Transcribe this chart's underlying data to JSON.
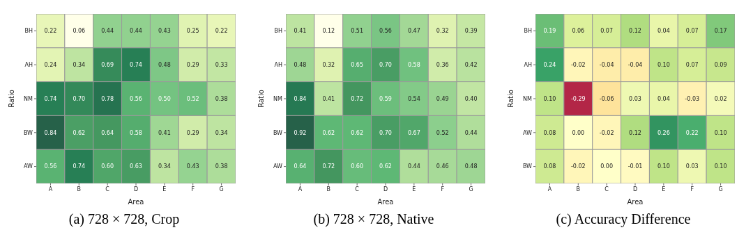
{
  "chart_data": [
    {
      "type": "heatmap",
      "title": "(a) 728 × 728, Crop",
      "xlabel": "Area",
      "ylabel": "Ratio",
      "categories": [
        "A",
        "B",
        "C",
        "D",
        "E",
        "F",
        "G"
      ],
      "y_categories": [
        "BH",
        "AH",
        "NM",
        "BW",
        "AW"
      ],
      "data_labels": true,
      "cells": [
        [
          0.22,
          0.06,
          0.44,
          0.44,
          0.43,
          0.25,
          0.22
        ],
        [
          0.24,
          0.34,
          0.69,
          0.74,
          0.48,
          0.29,
          0.33
        ],
        [
          0.74,
          0.7,
          0.78,
          0.56,
          0.5,
          0.52,
          0.38
        ],
        [
          0.84,
          0.62,
          0.64,
          0.58,
          0.41,
          0.29,
          0.34
        ],
        [
          0.56,
          0.74,
          0.6,
          0.63,
          0.34,
          0.43,
          0.38
        ]
      ],
      "cell_labels": [
        [
          "0.22",
          "0.06",
          "0.44",
          "0.44",
          "0.43",
          "0.25",
          "0.22"
        ],
        [
          "0.24",
          "0.34",
          "0.69",
          "0.74",
          "0.48",
          "0.29",
          "0.33"
        ],
        [
          "0.74",
          "0.70",
          "0.78",
          "0.56",
          "0.50",
          "0.52",
          "0.38"
        ],
        [
          "0.84",
          "0.62",
          "0.64",
          "0.58",
          "0.41",
          "0.29",
          "0.34"
        ],
        [
          "0.56",
          "0.74",
          "0.60",
          "0.63",
          "0.34",
          "0.43",
          "0.38"
        ]
      ]
    },
    {
      "type": "heatmap",
      "title": "(b) 728 × 728, Native",
      "xlabel": "Area",
      "ylabel": "Ratio",
      "categories": [
        "A",
        "B",
        "C",
        "D",
        "E",
        "F",
        "G"
      ],
      "y_categories": [
        "BH",
        "AH",
        "NM",
        "BW",
        "AW"
      ],
      "data_labels": true,
      "cells": [
        [
          0.41,
          0.12,
          0.51,
          0.56,
          0.47,
          0.32,
          0.39
        ],
        [
          0.48,
          0.32,
          0.65,
          0.7,
          0.58,
          0.36,
          0.42
        ],
        [
          0.84,
          0.41,
          0.72,
          0.59,
          0.54,
          0.49,
          0.4
        ],
        [
          0.92,
          0.62,
          0.62,
          0.7,
          0.67,
          0.52,
          0.44
        ],
        [
          0.64,
          0.72,
          0.6,
          0.62,
          0.44,
          0.46,
          0.48
        ]
      ],
      "cell_labels": [
        [
          "0.41",
          "0.12",
          "0.51",
          "0.56",
          "0.47",
          "0.32",
          "0.39"
        ],
        [
          "0.48",
          "0.32",
          "0.65",
          "0.70",
          "0.58",
          "0.36",
          "0.42"
        ],
        [
          "0.84",
          "0.41",
          "0.72",
          "0.59",
          "0.54",
          "0.49",
          "0.40"
        ],
        [
          "0.92",
          "0.62",
          "0.62",
          "0.70",
          "0.67",
          "0.52",
          "0.44"
        ],
        [
          "0.64",
          "0.72",
          "0.60",
          "0.62",
          "0.44",
          "0.46",
          "0.48"
        ]
      ]
    },
    {
      "type": "heatmap",
      "title": "(c) Accuracy Difference",
      "xlabel": "Area",
      "ylabel": "Ratio",
      "categories": [
        "A",
        "B",
        "C",
        "D",
        "E",
        "F",
        "G"
      ],
      "y_categories": [
        "BH",
        "AH",
        "NM",
        "AW",
        "BW"
      ],
      "data_labels": true,
      "cells": [
        [
          0.19,
          0.06,
          0.07,
          0.12,
          0.04,
          0.07,
          0.17
        ],
        [
          0.24,
          -0.02,
          -0.04,
          -0.04,
          0.1,
          0.07,
          0.09
        ],
        [
          0.1,
          -0.29,
          -0.06,
          0.03,
          0.04,
          -0.03,
          0.02
        ],
        [
          0.08,
          0.0,
          -0.02,
          0.12,
          0.26,
          0.22,
          0.1
        ],
        [
          0.08,
          -0.02,
          0.0,
          -0.01,
          0.1,
          0.03,
          0.1
        ]
      ],
      "cell_labels": [
        [
          "0.19",
          "0.06",
          "0.07",
          "0.12",
          "0.04",
          "0.07",
          "0.17"
        ],
        [
          "0.24",
          "-0.02",
          "-0.04",
          "-0.04",
          "0.10",
          "0.07",
          "0.09"
        ],
        [
          "0.10",
          "-0.29",
          "-0.06",
          "0.03",
          "0.04",
          "-0.03",
          "0.02"
        ],
        [
          "0.08",
          "0.00",
          "-0.02",
          "0.12",
          "0.26",
          "0.22",
          "0.10"
        ],
        [
          "0.08",
          "-0.02",
          "0.00",
          "-0.01",
          "0.10",
          "0.03",
          "0.10"
        ]
      ]
    }
  ]
}
